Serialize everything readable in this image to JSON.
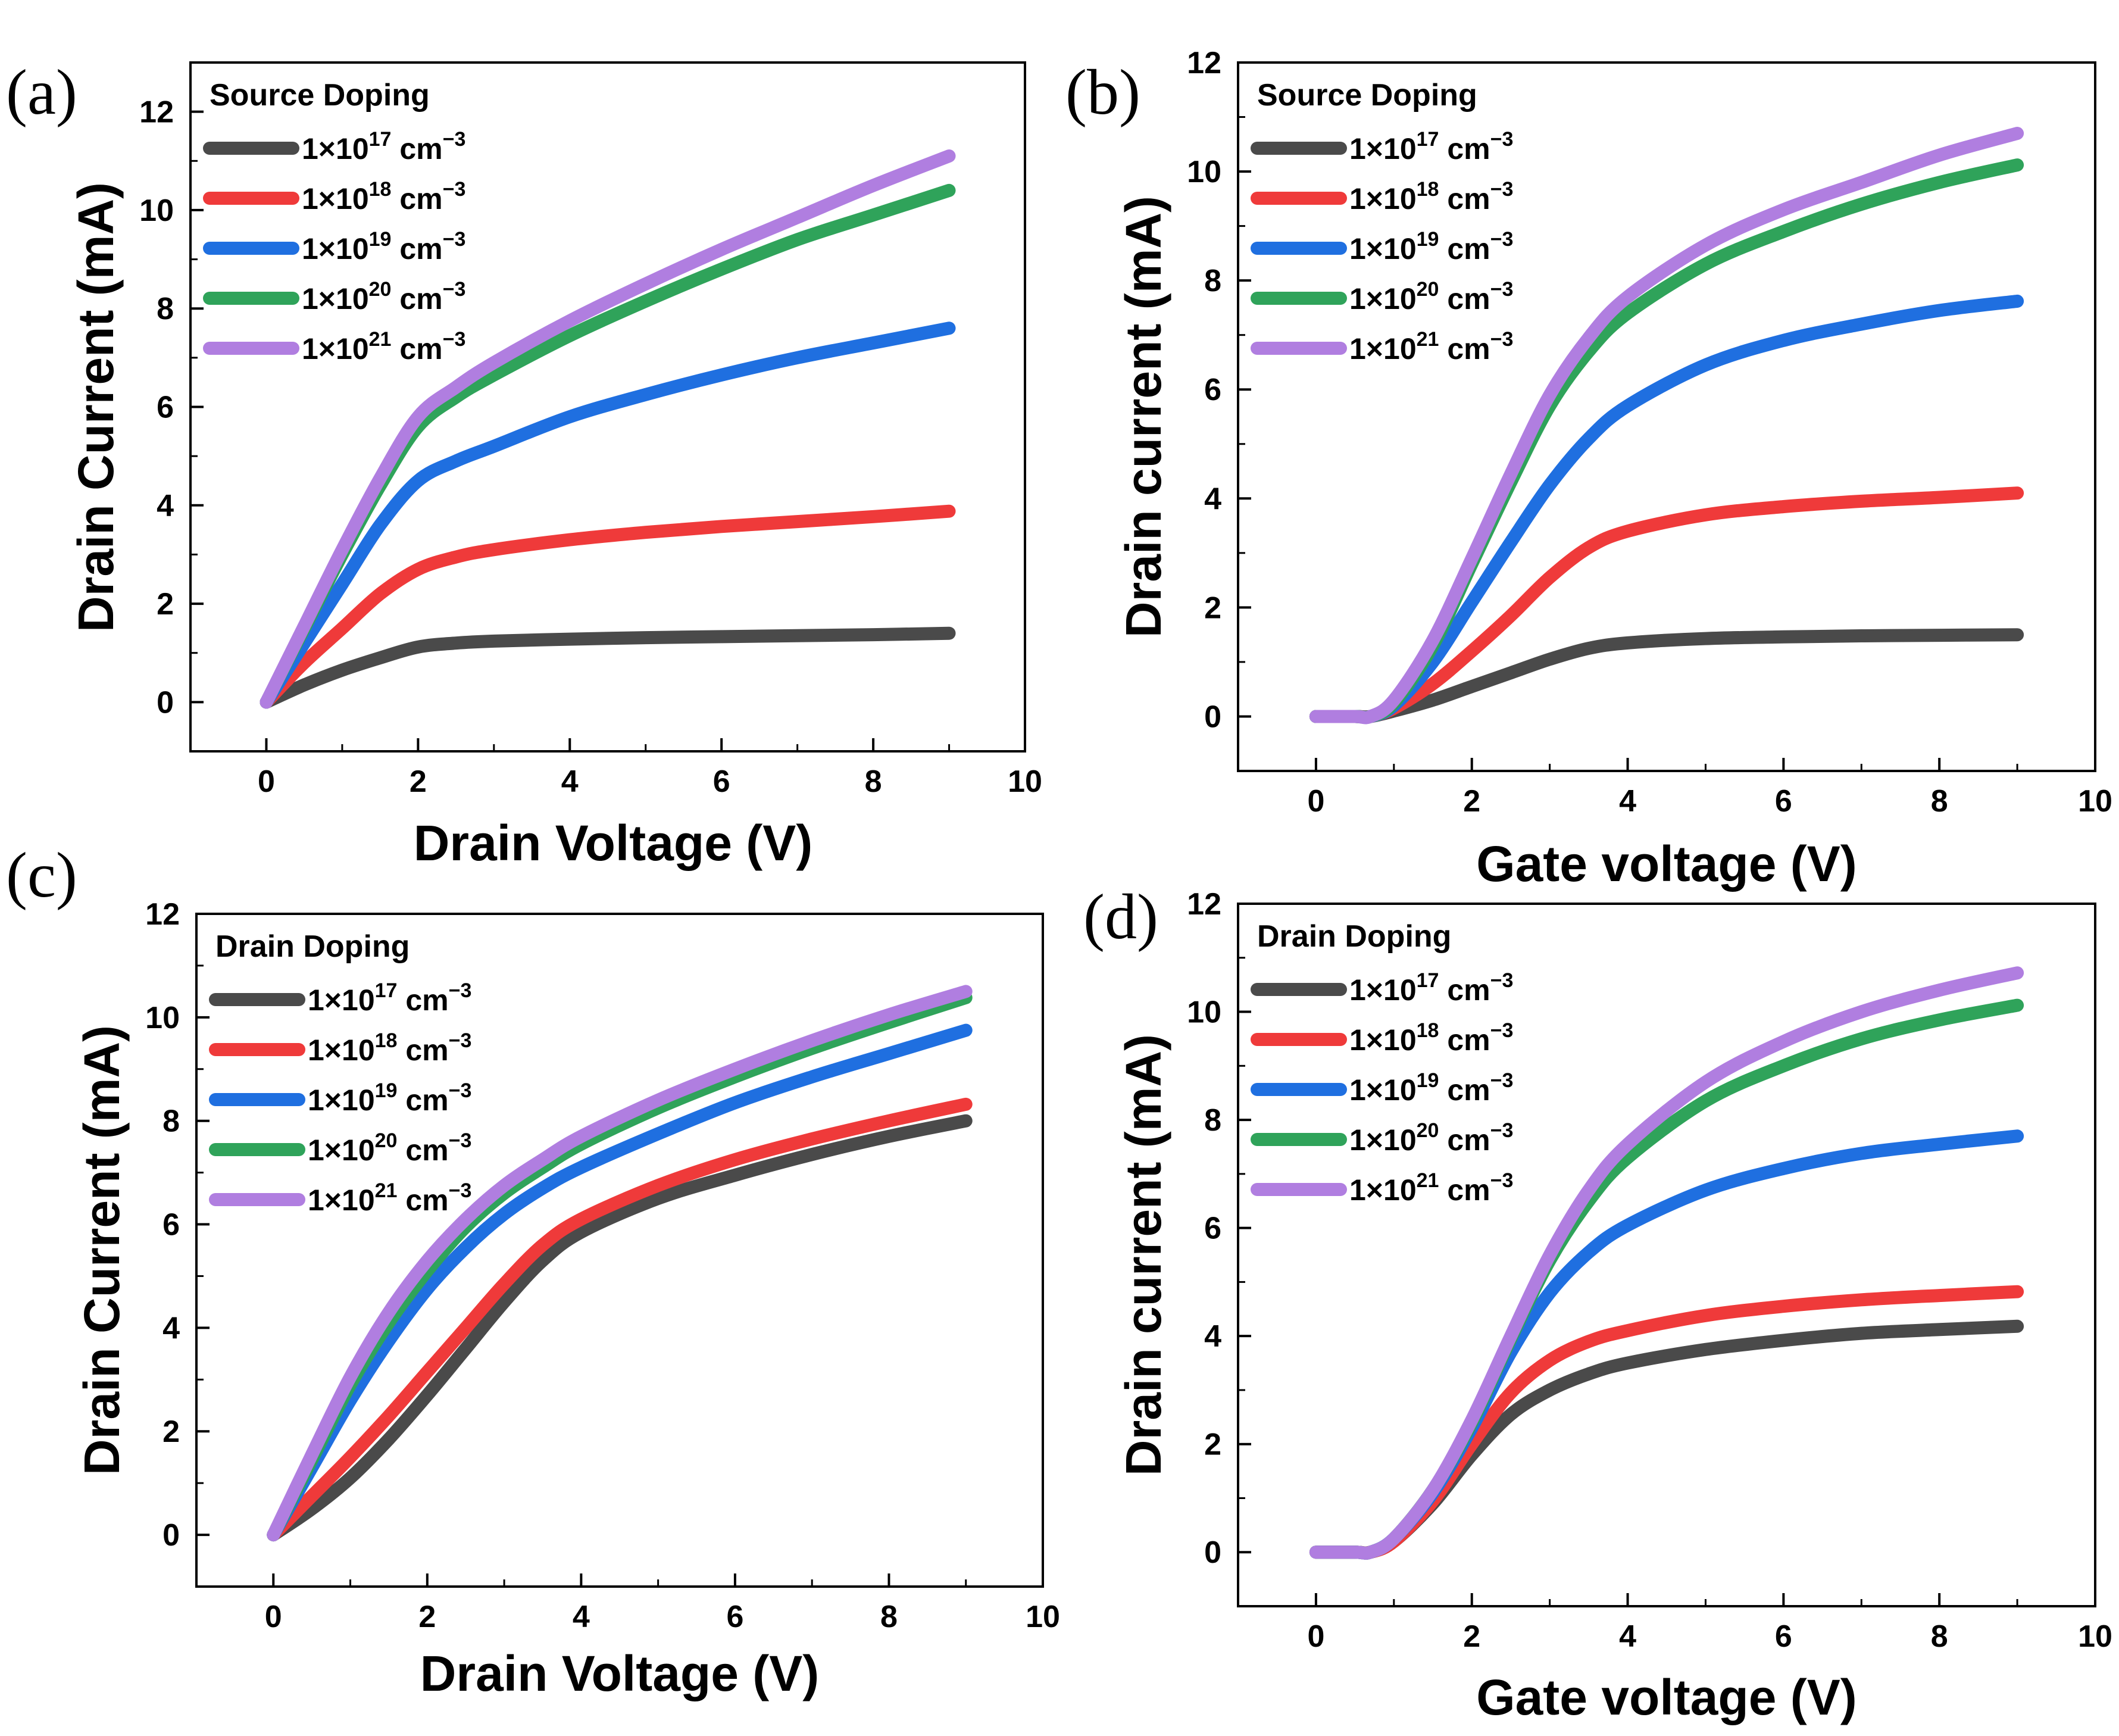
{
  "colors": {
    "series": [
      "#4a4a4a",
      "#ef3a3a",
      "#1f6fe0",
      "#2fa35a",
      "#b07ee0"
    ],
    "axis": "#000000"
  },
  "legend_entries": [
    {
      "base": "1×10",
      "exp": "17",
      "unit": " cm",
      "unit_exp": "−3"
    },
    {
      "base": "1×10",
      "exp": "18",
      "unit": " cm",
      "unit_exp": "−3"
    },
    {
      "base": "1×10",
      "exp": "19",
      "unit": " cm",
      "unit_exp": "−3"
    },
    {
      "base": "1×10",
      "exp": "20",
      "unit": " cm",
      "unit_exp": "−3"
    },
    {
      "base": "1×10",
      "exp": "21",
      "unit": " cm",
      "unit_exp": "−3"
    }
  ],
  "chart_data": [
    {
      "panel": "(a)",
      "type": "line",
      "xlabel": "Drain Voltage (V)",
      "ylabel": "Drain Current (mA)",
      "xlim": [
        -1,
        10
      ],
      "ylim": [
        -1,
        13
      ],
      "xticks": [
        0,
        2,
        4,
        6,
        8,
        10
      ],
      "yticks": [
        0,
        2,
        4,
        6,
        8,
        10,
        12
      ],
      "legend_title": "Source Doping",
      "legend_position": "top-left",
      "x": [
        0,
        0.5,
        1,
        1.5,
        2,
        2.5,
        3,
        4,
        5,
        6,
        7,
        8,
        9
      ],
      "series": [
        {
          "name": "1×10^17 cm^-3",
          "values": [
            0,
            0.35,
            0.65,
            0.9,
            1.12,
            1.2,
            1.24,
            1.28,
            1.31,
            1.33,
            1.35,
            1.37,
            1.4
          ]
        },
        {
          "name": "1×10^18 cm^-3",
          "values": [
            0,
            0.8,
            1.5,
            2.2,
            2.7,
            2.95,
            3.1,
            3.3,
            3.45,
            3.57,
            3.67,
            3.77,
            3.88
          ]
        },
        {
          "name": "1×10^19 cm^-3",
          "values": [
            0,
            1.2,
            2.4,
            3.6,
            4.5,
            4.9,
            5.2,
            5.8,
            6.25,
            6.65,
            7.0,
            7.3,
            7.6
          ]
        },
        {
          "name": "1×10^20 cm^-3",
          "values": [
            0,
            1.5,
            3.0,
            4.4,
            5.6,
            6.2,
            6.65,
            7.45,
            8.15,
            8.8,
            9.4,
            9.9,
            10.4
          ]
        },
        {
          "name": "1×10^21 cm^-3",
          "values": [
            0,
            1.55,
            3.1,
            4.55,
            5.8,
            6.4,
            6.9,
            7.75,
            8.5,
            9.2,
            9.85,
            10.5,
            11.1
          ]
        }
      ]
    },
    {
      "panel": "(b)",
      "type": "line",
      "xlabel": "Gate voltage (V)",
      "ylabel": "Drain current (mA)",
      "xlim": [
        -1,
        10
      ],
      "ylim": [
        -1,
        12
      ],
      "xticks": [
        0,
        2,
        4,
        6,
        8,
        10
      ],
      "yticks": [
        0,
        2,
        4,
        6,
        8,
        10,
        12
      ],
      "legend_title": "Source Doping",
      "legend_position": "top-left",
      "x": [
        0,
        0.5,
        0.7,
        1,
        1.5,
        2,
        2.5,
        3,
        3.5,
        4,
        5,
        6,
        7,
        8,
        9
      ],
      "series": [
        {
          "name": "1×10^17 cm^-3",
          "values": [
            0,
            0,
            0,
            0.1,
            0.3,
            0.55,
            0.8,
            1.05,
            1.25,
            1.35,
            1.43,
            1.46,
            1.48,
            1.49,
            1.5
          ]
        },
        {
          "name": "1×10^18 cm^-3",
          "values": [
            0,
            0,
            0,
            0.15,
            0.6,
            1.2,
            1.85,
            2.55,
            3.1,
            3.4,
            3.7,
            3.85,
            3.95,
            4.02,
            4.1
          ]
        },
        {
          "name": "1×10^19 cm^-3",
          "values": [
            0,
            0,
            0,
            0.2,
            1.0,
            2.1,
            3.2,
            4.25,
            5.1,
            5.7,
            6.45,
            6.9,
            7.2,
            7.45,
            7.62
          ]
        },
        {
          "name": "1×10^20 cm^-3",
          "values": [
            0,
            0,
            0,
            0.25,
            1.3,
            2.8,
            4.3,
            5.7,
            6.7,
            7.4,
            8.3,
            8.9,
            9.4,
            9.8,
            10.12
          ]
        },
        {
          "name": "1×10^21 cm^-3",
          "values": [
            0,
            0,
            0,
            0.3,
            1.4,
            2.9,
            4.45,
            5.9,
            6.95,
            7.7,
            8.65,
            9.3,
            9.8,
            10.3,
            10.7
          ]
        }
      ]
    },
    {
      "panel": "(c)",
      "type": "line",
      "xlabel": "Drain Voltage (V)",
      "ylabel": "Drain Current (mA)",
      "xlim": [
        -1,
        10
      ],
      "ylim": [
        -1,
        12
      ],
      "xticks": [
        0,
        2,
        4,
        6,
        8,
        10
      ],
      "yticks": [
        0,
        2,
        4,
        6,
        8,
        10,
        12
      ],
      "legend_title": "Drain Doping",
      "legend_position": "top-left",
      "x": [
        0,
        0.5,
        1,
        1.5,
        2,
        2.5,
        3,
        3.5,
        4,
        5,
        6,
        7,
        8,
        9
      ],
      "series": [
        {
          "name": "1×10^17 cm^-3",
          "values": [
            0,
            0.5,
            1.1,
            1.85,
            2.7,
            3.6,
            4.5,
            5.3,
            5.85,
            6.5,
            6.95,
            7.35,
            7.7,
            8.0
          ]
        },
        {
          "name": "1×10^18 cm^-3",
          "values": [
            0,
            0.75,
            1.5,
            2.3,
            3.15,
            4.0,
            4.85,
            5.6,
            6.1,
            6.75,
            7.25,
            7.65,
            8.0,
            8.32
          ]
        },
        {
          "name": "1×10^19 cm^-3",
          "values": [
            0,
            1.3,
            2.6,
            3.75,
            4.75,
            5.55,
            6.2,
            6.7,
            7.1,
            7.75,
            8.35,
            8.85,
            9.3,
            9.75
          ]
        },
        {
          "name": "1×10^20 cm^-3",
          "values": [
            0,
            1.45,
            2.9,
            4.1,
            5.1,
            5.95,
            6.6,
            7.1,
            7.55,
            8.25,
            8.85,
            9.4,
            9.9,
            10.38
          ]
        },
        {
          "name": "1×10^21 cm^-3",
          "values": [
            0,
            1.55,
            3.05,
            4.3,
            5.3,
            6.1,
            6.75,
            7.25,
            7.7,
            8.4,
            9.0,
            9.55,
            10.05,
            10.5
          ]
        }
      ]
    },
    {
      "panel": "(d)",
      "type": "line",
      "xlabel": "Gate voltage (V)",
      "ylabel": "Drain current (mA)",
      "xlim": [
        -1,
        10
      ],
      "ylim": [
        -1,
        12
      ],
      "xticks": [
        0,
        2,
        4,
        6,
        8,
        10
      ],
      "yticks": [
        0,
        2,
        4,
        6,
        8,
        10,
        12
      ],
      "legend_title": "Drain Doping",
      "legend_position": "top-left",
      "x": [
        0,
        0.5,
        0.7,
        1,
        1.5,
        2,
        2.5,
        3,
        3.5,
        4,
        5,
        6,
        7,
        8,
        9
      ],
      "series": [
        {
          "name": "1×10^17 cm^-3",
          "values": [
            0,
            0,
            0,
            0.2,
            0.9,
            1.8,
            2.55,
            3.0,
            3.3,
            3.5,
            3.75,
            3.92,
            4.05,
            4.12,
            4.18
          ]
        },
        {
          "name": "1×10^18 cm^-3",
          "values": [
            0,
            0,
            0,
            0.2,
            0.95,
            2.0,
            2.95,
            3.55,
            3.9,
            4.1,
            4.38,
            4.55,
            4.67,
            4.75,
            4.82
          ]
        },
        {
          "name": "1×10^19 cm^-3",
          "values": [
            0,
            0,
            0,
            0.25,
            1.1,
            2.3,
            3.7,
            4.8,
            5.55,
            6.05,
            6.7,
            7.1,
            7.38,
            7.55,
            7.7
          ]
        },
        {
          "name": "1×10^20 cm^-3",
          "values": [
            0,
            0,
            0,
            0.25,
            1.15,
            2.4,
            3.95,
            5.4,
            6.5,
            7.3,
            8.35,
            9.0,
            9.5,
            9.85,
            10.12
          ]
        },
        {
          "name": "1×10^21 cm^-3",
          "values": [
            0,
            0,
            0,
            0.25,
            1.15,
            2.45,
            4.0,
            5.5,
            6.7,
            7.55,
            8.7,
            9.45,
            10.0,
            10.4,
            10.72
          ]
        }
      ]
    }
  ]
}
